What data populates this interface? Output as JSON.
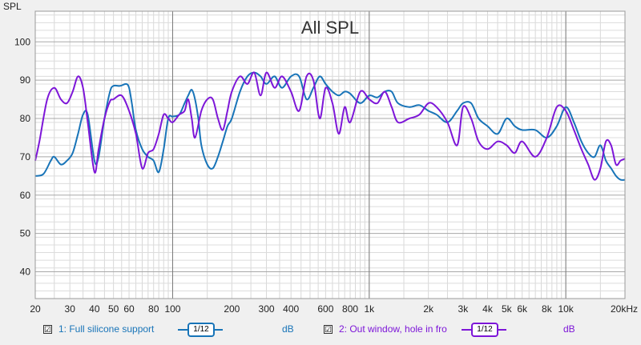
{
  "chart_data": {
    "type": "line",
    "title": "All SPL",
    "ylabel": "SPL",
    "xscale": "log",
    "xlim": [
      20,
      20000
    ],
    "ylim": [
      33,
      108
    ],
    "grid": true,
    "y_ticks": [
      40,
      50,
      60,
      70,
      80,
      90,
      100
    ],
    "y_tick_labels": [
      "40",
      "50",
      "60",
      "70",
      "80",
      "90",
      "100"
    ],
    "x_ticks": [
      20,
      30,
      40,
      50,
      60,
      80,
      100,
      200,
      300,
      400,
      600,
      800,
      1000,
      2000,
      3000,
      4000,
      5000,
      6000,
      8000,
      10000,
      20000
    ],
    "x_tick_labels": [
      "20",
      "30",
      "40",
      "50",
      "60",
      "80",
      "100",
      "200",
      "300",
      "400",
      "600",
      "800",
      "1k",
      "2k",
      "3k",
      "4k",
      "5k",
      "6k",
      "8k",
      "10k",
      "20kHz"
    ],
    "series": [
      {
        "name": "1: Full silicone support",
        "color": "#1874b8",
        "x": [
          20,
          22,
          24,
          25,
          27,
          29,
          31,
          33,
          35,
          37,
          40,
          42,
          45,
          48,
          50,
          54,
          58,
          60,
          62,
          65,
          70,
          75,
          80,
          85,
          90,
          95,
          100,
          108,
          115,
          120,
          125,
          130,
          135,
          140,
          150,
          160,
          170,
          180,
          190,
          200,
          220,
          240,
          260,
          280,
          300,
          330,
          360,
          400,
          440,
          480,
          520,
          560,
          600,
          650,
          700,
          750,
          800,
          900,
          1000,
          1100,
          1200,
          1300,
          1400,
          1600,
          1800,
          2000,
          2200,
          2500,
          2800,
          3000,
          3300,
          3600,
          4000,
          4500,
          5000,
          5500,
          6000,
          7000,
          8000,
          9000,
          10000,
          11000,
          12000,
          13000,
          14000,
          15000,
          16000,
          17000,
          18000,
          19000,
          20000
        ],
        "y": [
          65,
          65.5,
          69,
          70,
          68,
          69,
          71,
          76,
          81,
          81,
          69,
          70,
          80,
          87,
          88.5,
          88.5,
          89,
          88,
          84,
          77,
          72,
          70,
          69,
          66,
          72,
          80,
          80.5,
          81,
          84,
          86,
          87.5,
          85,
          80,
          73,
          68,
          67,
          70,
          74,
          78,
          80,
          87,
          91,
          92,
          91,
          89,
          91,
          88,
          91,
          91,
          85,
          88,
          91,
          89,
          87,
          86,
          87,
          86.5,
          84,
          86,
          85.5,
          87,
          87,
          84,
          83,
          83.5,
          82,
          81,
          79,
          82,
          84,
          84,
          80,
          78,
          76,
          80,
          78,
          77,
          77,
          75,
          78,
          83,
          79,
          74,
          71,
          70,
          73,
          69,
          67,
          65,
          64,
          64
        ]
      },
      {
        "name": "2: Out window, hole in fro",
        "color": "#7d16d8",
        "x": [
          20,
          21,
          23,
          25,
          27,
          29,
          31,
          33,
          35,
          37,
          40,
          42,
          45,
          48,
          50,
          55,
          60,
          65,
          70,
          75,
          80,
          85,
          90,
          95,
          100,
          108,
          115,
          120,
          125,
          130,
          140,
          150,
          160,
          170,
          180,
          190,
          200,
          220,
          240,
          260,
          280,
          300,
          330,
          360,
          400,
          440,
          480,
          520,
          560,
          600,
          650,
          700,
          750,
          800,
          900,
          1000,
          1100,
          1200,
          1300,
          1400,
          1600,
          1800,
          2000,
          2200,
          2500,
          2800,
          3000,
          3300,
          3600,
          4000,
          4500,
          5000,
          5500,
          6000,
          7000,
          8000,
          9000,
          10000,
          11000,
          12000,
          13000,
          14000,
          15000,
          16000,
          17000,
          18000,
          19000,
          20000
        ],
        "y": [
          69,
          74,
          85,
          88,
          85,
          84,
          87,
          91,
          88,
          79,
          66,
          72,
          80,
          84.5,
          85,
          86,
          82,
          76,
          67,
          71,
          72,
          76,
          81,
          80,
          79,
          81,
          82,
          85,
          80,
          75,
          82,
          85,
          85,
          80,
          77,
          82,
          87,
          91,
          89,
          92,
          86,
          92,
          88,
          91,
          87,
          82,
          91,
          90,
          80,
          88,
          84,
          76,
          83,
          79,
          87,
          85,
          84,
          87,
          83,
          79,
          80,
          81,
          84,
          83,
          79,
          73,
          83,
          80,
          74,
          72,
          74,
          73,
          71,
          74,
          70,
          75,
          83,
          82,
          77,
          72,
          68,
          64,
          67,
          74,
          73,
          68,
          69,
          69.5
        ]
      }
    ]
  },
  "legend": {
    "items": [
      {
        "check": "☑",
        "label": "1: Full silicone support",
        "smoothing": "1/12",
        "unit": "dB",
        "color": "#1874b8"
      },
      {
        "check": "☑",
        "label": "2: Out window, hole in fro",
        "smoothing": "1/12",
        "unit": "dB",
        "color": "#7d16d8"
      }
    ]
  }
}
